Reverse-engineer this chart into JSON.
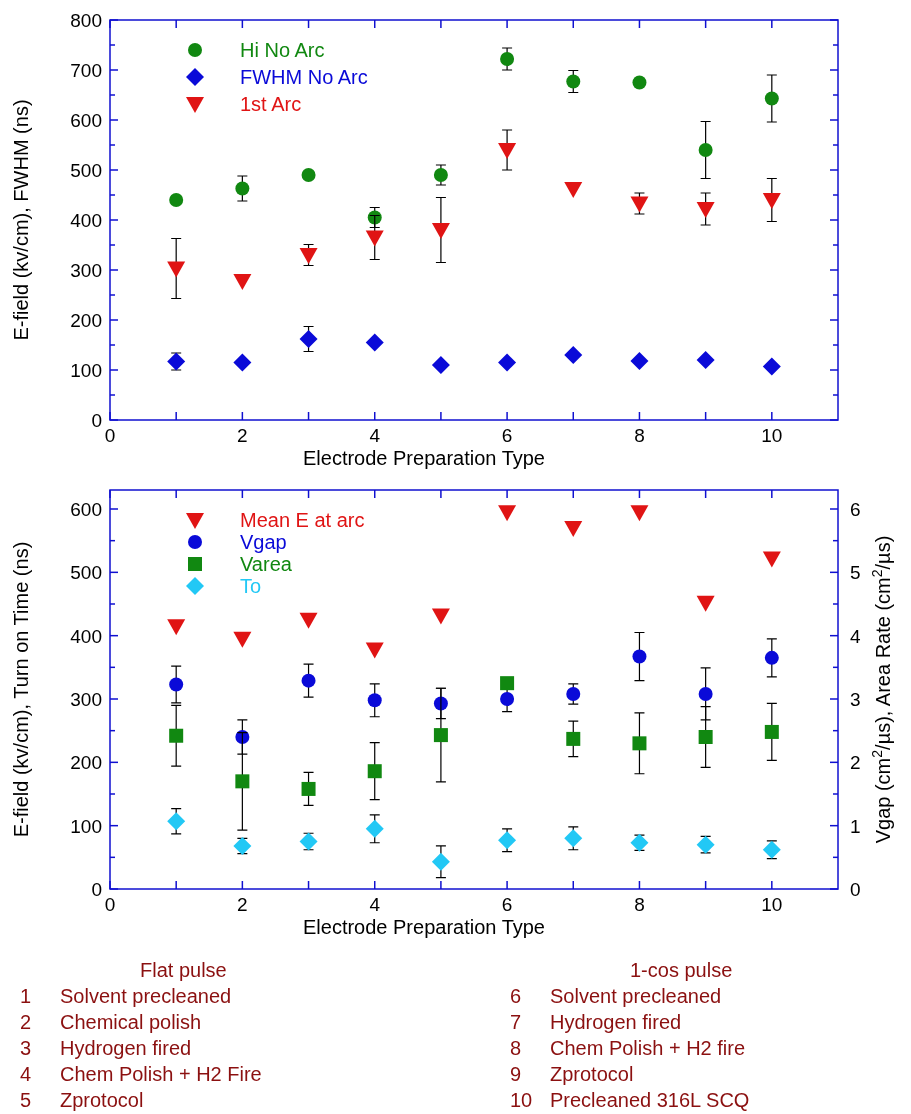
{
  "chart_data": [
    {
      "type": "scatter",
      "xlabel": "Electrode Preparation Type",
      "ylabel": "E-field (kv/cm), FWHM (ns)",
      "xlim": [
        0,
        11
      ],
      "xticks": [
        0,
        {
          "value": 1,
          "label": null
        },
        2,
        {
          "value": 3,
          "label": null
        },
        4,
        {
          "value": 5,
          "label": null
        },
        6,
        {
          "value": 7,
          "label": null
        },
        8,
        {
          "value": 9,
          "label": null
        },
        10
      ],
      "ylim": [
        0,
        800
      ],
      "yticks": [
        0,
        {
          "value": 50,
          "label": null
        },
        100,
        {
          "value": 150,
          "label": null
        },
        200,
        {
          "value": 250,
          "label": null
        },
        300,
        {
          "value": 350,
          "label": null
        },
        400,
        {
          "value": 450,
          "label": null
        },
        500,
        {
          "value": 550,
          "label": null
        },
        600,
        {
          "value": 650,
          "label": null
        },
        700,
        {
          "value": 750,
          "label": null
        },
        800
      ],
      "legend": "top left",
      "grid": false,
      "x": [
        1,
        2,
        3,
        4,
        5,
        6,
        7,
        8,
        9,
        10
      ],
      "series": [
        {
          "name": "Hi No Arc",
          "color": "#118811",
          "marker": "circle",
          "values": [
            440,
            463,
            490,
            405,
            490,
            722,
            677,
            675,
            540,
            643
          ],
          "errors": [
            null,
            25,
            null,
            20,
            20,
            22,
            22,
            null,
            57,
            47
          ]
        },
        {
          "name": "FWHM No Arc",
          "color": "#0a0ad8",
          "marker": "diamond",
          "values": [
            117,
            115,
            162,
            155,
            110,
            115,
            130,
            118,
            120,
            107
          ],
          "errors": [
            17,
            null,
            25,
            null,
            null,
            null,
            null,
            null,
            null,
            null
          ]
        },
        {
          "name": "1st Arc",
          "color": "#e01414",
          "marker": "triangle",
          "values": [
            303,
            278,
            330,
            365,
            380,
            540,
            462,
            433,
            422,
            440
          ],
          "errors": [
            60,
            null,
            21,
            44,
            65,
            40,
            null,
            21,
            32,
            43
          ]
        }
      ]
    },
    {
      "type": "scatter",
      "xlabel": "Electrode Preparation Type",
      "ylabel": "E-field (kv/cm), Turn on Time (ns)",
      "y2label": "Vgap (cm$^{2}$/µs), Area Rate (cm$^{2}$/µs)",
      "xlim": [
        0,
        11
      ],
      "xticks": [
        0,
        {
          "value": 1,
          "label": null
        },
        2,
        {
          "value": 3,
          "label": null
        },
        4,
        {
          "value": 5,
          "label": null
        },
        6,
        {
          "value": 7,
          "label": null
        },
        8,
        {
          "value": 9,
          "label": null
        },
        10
      ],
      "ylim": [
        0,
        630
      ],
      "yticks": [
        0,
        {
          "value": 50,
          "label": null
        },
        100,
        {
          "value": 150,
          "label": null
        },
        200,
        {
          "value": 250,
          "label": null
        },
        300,
        {
          "value": 350,
          "label": null
        },
        400,
        {
          "value": 450,
          "label": null
        },
        500,
        {
          "value": 550,
          "label": null
        },
        600
      ],
      "y2lim": [
        0,
        6.3
      ],
      "y2ticks": [
        0,
        {
          "value": 0.5,
          "label": null
        },
        1,
        {
          "value": 1.5,
          "label": null
        },
        2,
        {
          "value": 2.5,
          "label": null
        },
        3,
        {
          "value": 3.5,
          "label": null
        },
        4,
        {
          "value": 4.5,
          "label": null
        },
        5,
        {
          "value": 5.5,
          "label": null
        },
        6
      ],
      "legend": "top left",
      "grid": false,
      "x": [
        1,
        2,
        3,
        4,
        5,
        6,
        7,
        8,
        9,
        10
      ],
      "series": [
        {
          "name": "Mean E at arc",
          "color": "#e01414",
          "marker": "triangle",
          "values": [
            415,
            395,
            425,
            378,
            432,
            595,
            570,
            595,
            452,
            522
          ]
        },
        {
          "name": "Vgap",
          "color": "#0a0ad8",
          "marker": "circle",
          "axis": "y2",
          "values": [
            3.23,
            2.4,
            3.29,
            2.98,
            2.93,
            3.0,
            3.08,
            3.67,
            3.08,
            3.65
          ],
          "errors": [
            0.29,
            0.27,
            0.26,
            0.26,
            0.24,
            0.2,
            0.16,
            0.38,
            0.41,
            0.3
          ]
        },
        {
          "name": "Varea",
          "color": "#118811",
          "marker": "square",
          "axis": "y2",
          "values": [
            2.42,
            1.7,
            1.58,
            1.86,
            2.43,
            3.25,
            2.37,
            2.3,
            2.4,
            2.48
          ],
          "errors": [
            0.48,
            0.77,
            0.26,
            0.45,
            0.74,
            null,
            0.28,
            0.48,
            0.48,
            0.45
          ]
        },
        {
          "name": "To",
          "color": "#22c8f5",
          "marker": "diamond",
          "values": [
            107,
            68,
            75,
            95,
            43,
            77,
            80,
            73,
            70,
            62
          ],
          "errors": [
            20,
            12,
            13,
            22,
            25,
            18,
            18,
            12,
            13,
            14
          ]
        }
      ],
      "annotations": [
        "Flat pulse",
        "1  Solvent precleaned",
        "2  Chemical polish",
        "3  Hydrogen fired",
        "4  Chem Polish + H2 Fire",
        "5  Zprotocol",
        "1-cos pulse",
        "6  Solvent precleaned",
        "7  Hydrogen fired",
        "8  Chem Polish + H2 fire",
        "9  Zprotocol",
        "10  Precleaned 316L SCQ"
      ]
    }
  ]
}
